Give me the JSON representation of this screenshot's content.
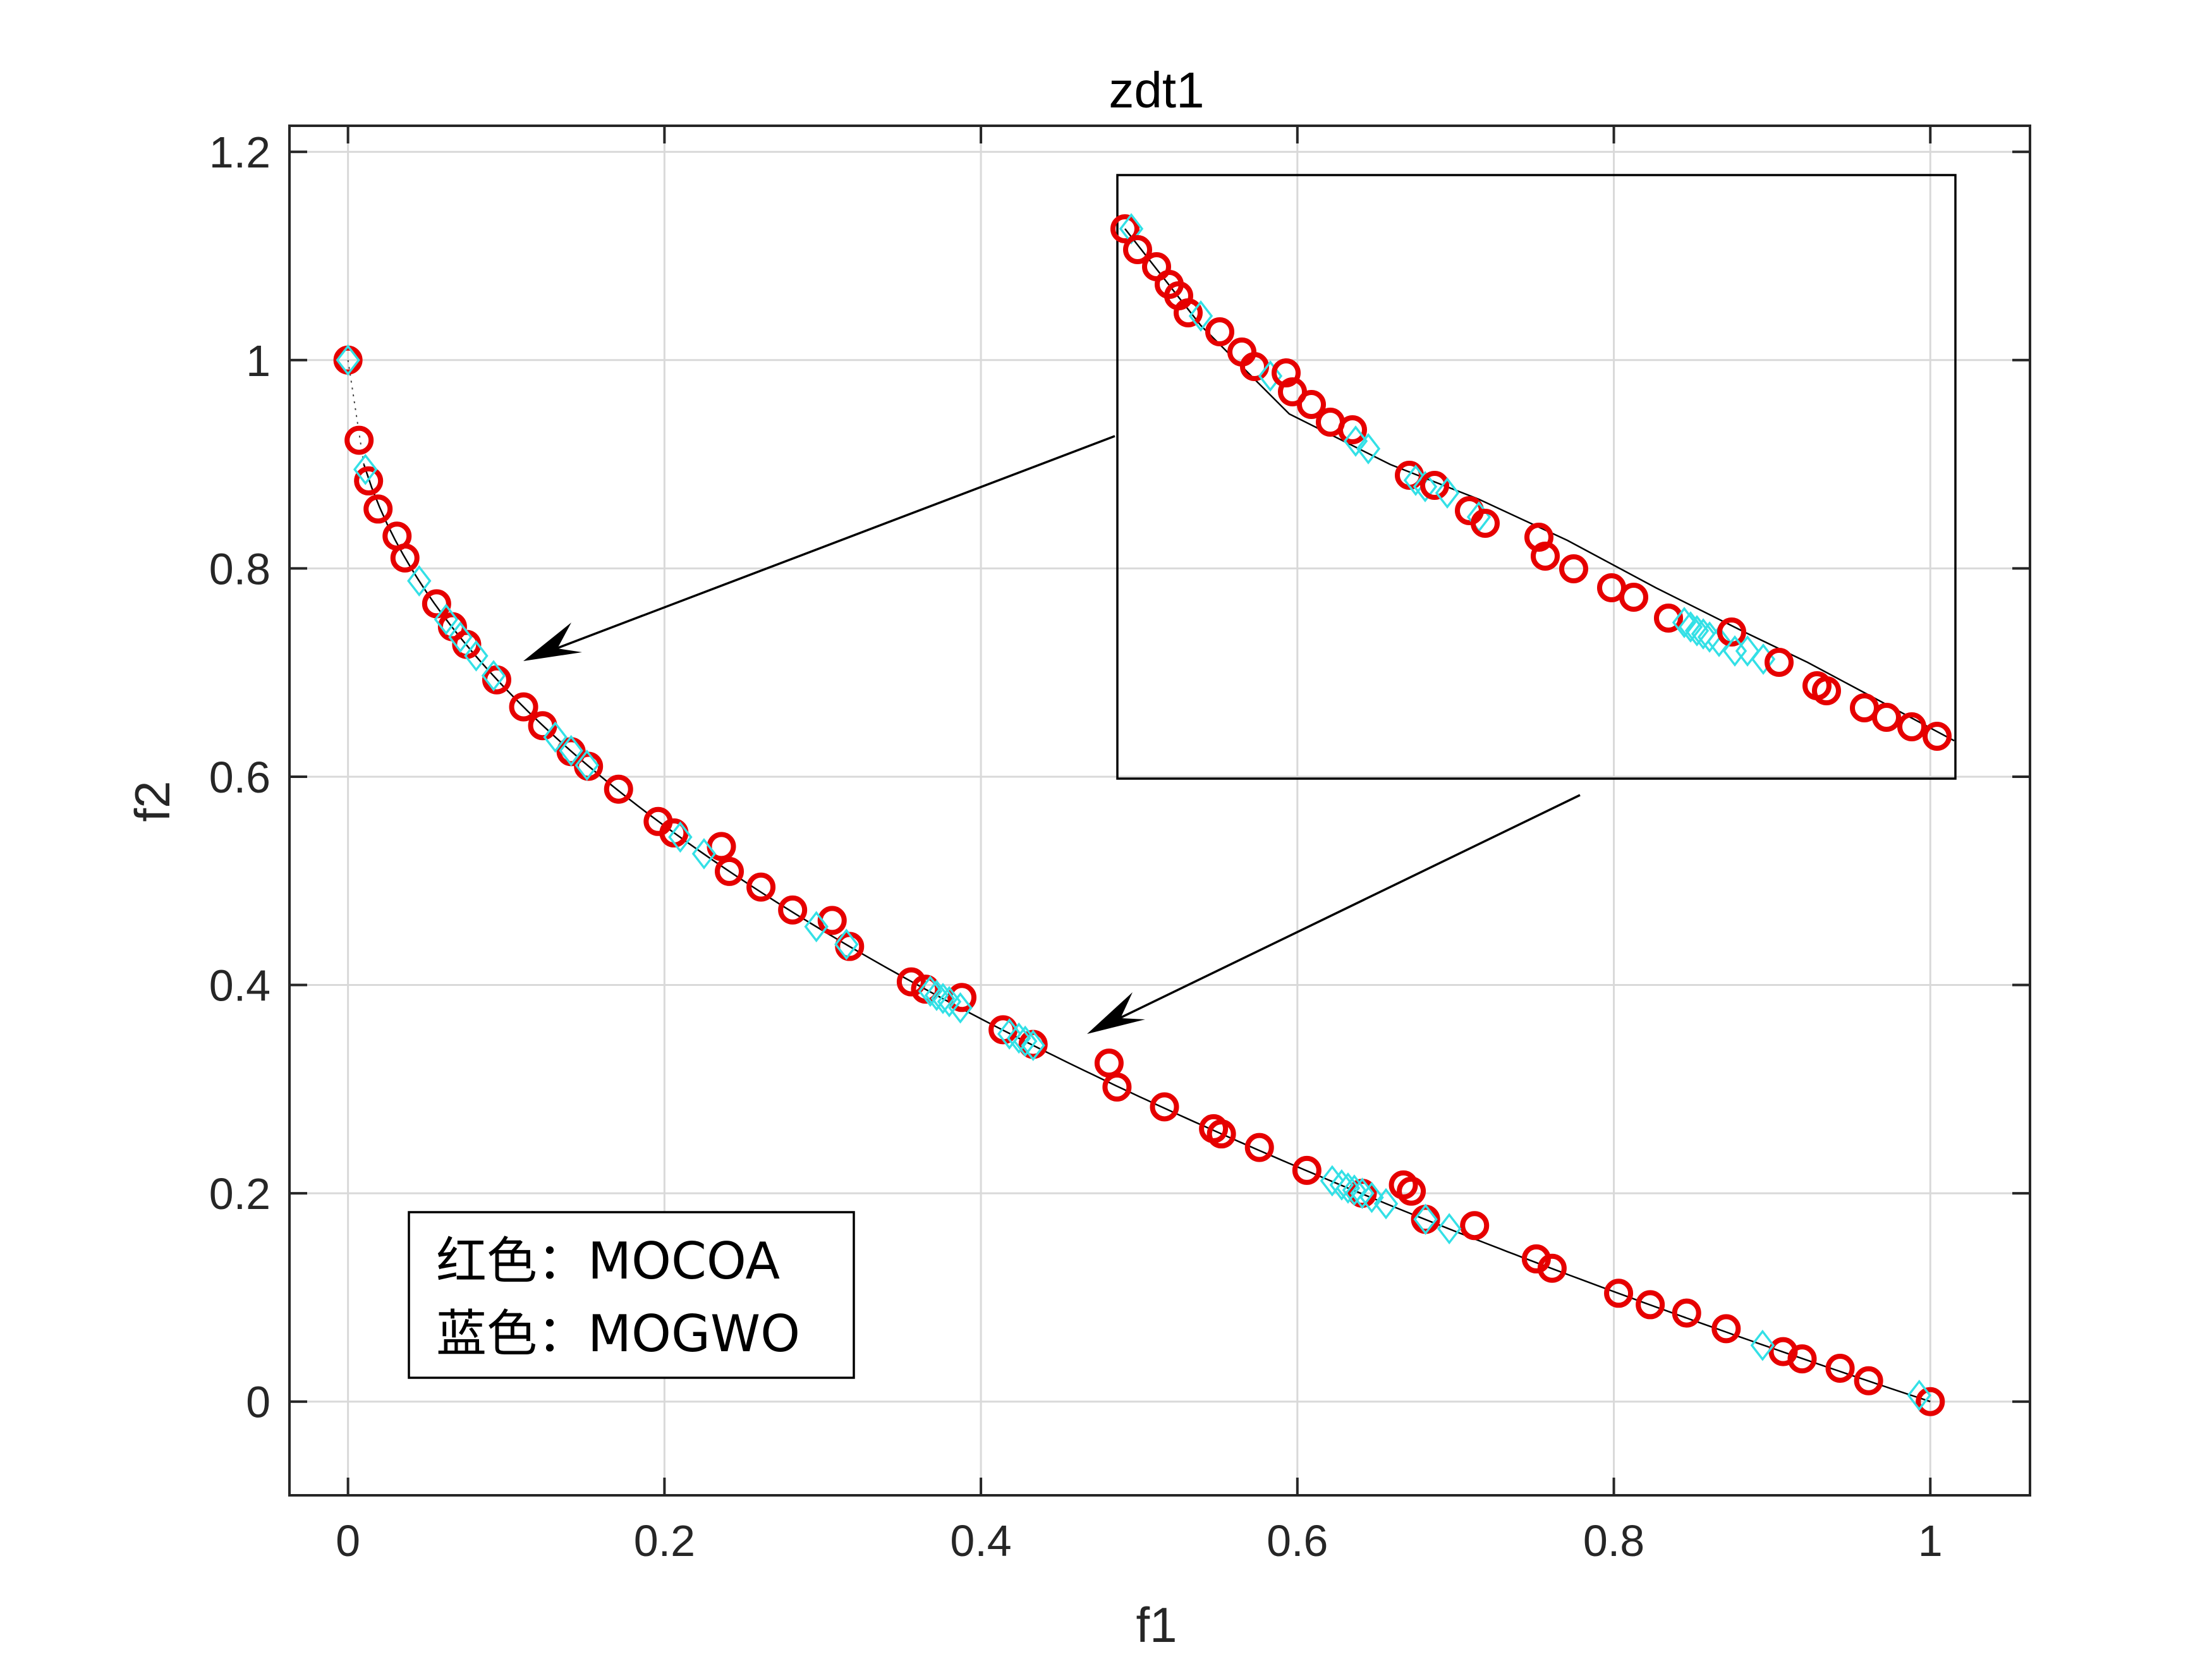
{
  "chart_data": {
    "type": "scatter",
    "title": "zdt1",
    "xlabel": "f1",
    "ylabel": "f2",
    "xlim": [
      -0.037,
      1.063
    ],
    "ylim": [
      -0.09,
      1.225
    ],
    "xticks": [
      0,
      0.2,
      0.4,
      0.6,
      0.8,
      1
    ],
    "xtick_labels": [
      "0",
      "0.2",
      "0.4",
      "0.6",
      "0.8",
      "1"
    ],
    "yticks": [
      0,
      0.2,
      0.4,
      0.6,
      0.8,
      1,
      1.2
    ],
    "ytick_labels": [
      "0",
      "0.2",
      "0.4",
      "0.6",
      "0.8",
      "1",
      "1.2"
    ],
    "grid": true,
    "reference_front": "f2 = 1 - sqrt(f1)",
    "note_lines": [
      "红色：MOCOA",
      "蓝色：MOGWO"
    ],
    "colors": {
      "MOCOA": "#e60000",
      "MOGWO": "#33e0e6",
      "front": "#000000",
      "grid": "#d9d9d9"
    },
    "series": [
      {
        "marker": "circle",
        "color": "#e60000",
        "x": [
          0.0,
          0.007,
          0.013,
          0.019,
          0.031,
          0.036,
          0.056,
          0.066,
          0.075,
          0.094,
          0.111,
          0.123,
          0.141,
          0.152,
          0.171,
          0.196,
          0.206,
          0.236,
          0.241,
          0.261,
          0.281,
          0.306,
          0.317,
          0.356,
          0.365,
          0.388,
          0.414,
          0.433,
          0.481,
          0.486,
          0.516,
          0.547,
          0.552,
          0.576,
          0.606,
          0.641,
          0.667,
          0.672,
          0.681,
          0.712,
          0.751,
          0.761,
          0.803,
          0.823,
          0.846,
          0.871,
          0.907,
          0.919,
          0.943,
          0.961,
          1.0
        ],
        "y": [
          1.0,
          0.923,
          0.884,
          0.857,
          0.831,
          0.81,
          0.766,
          0.744,
          0.727,
          0.693,
          0.667,
          0.649,
          0.624,
          0.61,
          0.588,
          0.557,
          0.546,
          0.533,
          0.509,
          0.494,
          0.472,
          0.462,
          0.437,
          0.403,
          0.396,
          0.388,
          0.357,
          0.343,
          0.325,
          0.302,
          0.283,
          0.262,
          0.257,
          0.244,
          0.222,
          0.2,
          0.208,
          0.202,
          0.175,
          0.169,
          0.137,
          0.128,
          0.104,
          0.093,
          0.085,
          0.07,
          0.048,
          0.041,
          0.032,
          0.02,
          0.0
        ]
      },
      {
        "marker": "diamond",
        "color": "#33e0e6",
        "x": [
          0.0,
          0.011,
          0.045,
          0.062,
          0.071,
          0.081,
          0.092,
          0.131,
          0.141,
          0.151,
          0.21,
          0.225,
          0.296,
          0.315,
          0.368,
          0.372,
          0.376,
          0.38,
          0.387,
          0.418,
          0.424,
          0.428,
          0.433,
          0.622,
          0.628,
          0.632,
          0.636,
          0.641,
          0.647,
          0.656,
          0.681,
          0.696,
          0.894,
          0.993
        ],
        "y": [
          1.0,
          0.895,
          0.788,
          0.751,
          0.734,
          0.716,
          0.697,
          0.638,
          0.625,
          0.611,
          0.542,
          0.526,
          0.456,
          0.439,
          0.394,
          0.39,
          0.387,
          0.384,
          0.378,
          0.353,
          0.349,
          0.346,
          0.342,
          0.212,
          0.208,
          0.205,
          0.203,
          0.2,
          0.196,
          0.19,
          0.175,
          0.166,
          0.054,
          0.006
        ]
      }
    ]
  }
}
